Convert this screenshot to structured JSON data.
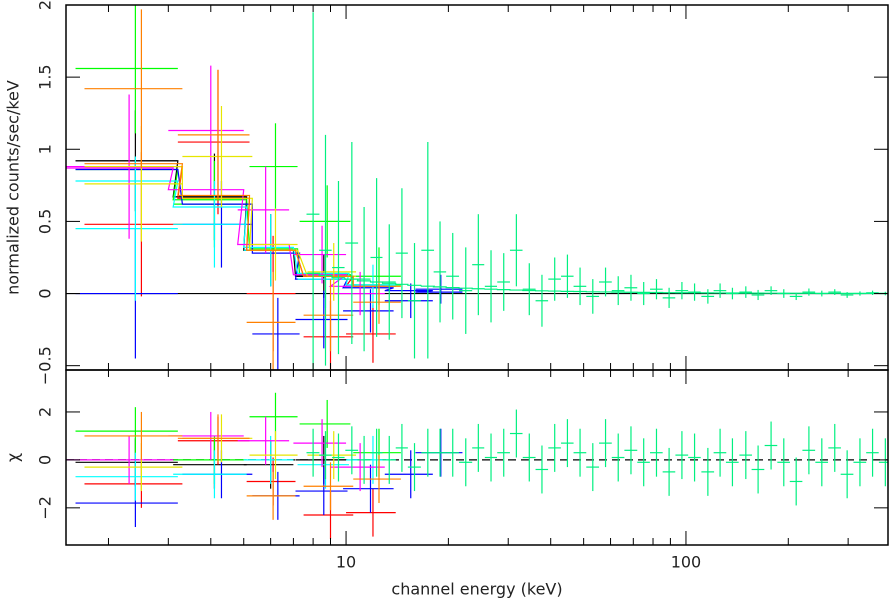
{
  "chart_data": [
    {
      "type": "errorbar",
      "xscale": "log",
      "ylabel": "normalized counts/sec/keV",
      "xlim": [
        1.5,
        393
      ],
      "xticks": [
        10,
        100
      ],
      "x_minor_ticks": [
        2,
        3,
        4,
        5,
        6,
        7,
        8,
        9,
        20,
        30,
        40,
        50,
        60,
        70,
        80,
        90,
        200,
        300
      ],
      "ylim": [
        -0.53,
        2.0
      ],
      "yticks": [
        {
          "value": -0.5,
          "label": "−0.5"
        },
        0,
        0.5,
        1,
        1.5,
        2
      ],
      "reference_line": 0,
      "reference_style": "solid",
      "series": [
        {
          "color": "#000000",
          "x": [
            2.4,
            4.1,
            6.0,
            8.6
          ],
          "x_err": [
            0.8,
            1.0,
            1.0,
            1.5
          ],
          "values": [
            0.92,
            0.67,
            0.3,
            0.12
          ],
          "errors": [
            0.35,
            0.3,
            0.25,
            0.15
          ],
          "model": [
            0.92,
            0.67,
            0.3,
            0.12
          ]
        },
        {
          "color": "#ff0000",
          "x": [
            2.5,
            4.2,
            6.1,
            9.0,
            12.0
          ],
          "x_err": [
            0.8,
            1.0,
            1.0,
            1.5,
            2.0
          ],
          "values": [
            0.48,
            1.05,
            0.0,
            -0.3,
            -0.28
          ],
          "errors": [
            0.5,
            0.5,
            0.4,
            0.25,
            0.2
          ],
          "model": [
            0.88,
            0.66,
            0.3,
            0.12,
            0.05
          ]
        },
        {
          "color": "#00ff00",
          "x": [
            2.4,
            4.1,
            6.2,
            8.8,
            12.5
          ],
          "x_err": [
            0.8,
            1.0,
            1.0,
            1.5,
            2.0
          ],
          "values": [
            1.56,
            0.62,
            0.88,
            0.5,
            0.12
          ],
          "errors": [
            0.45,
            0.3,
            0.3,
            0.25,
            0.2
          ],
          "model": [
            0.86,
            0.65,
            0.31,
            0.13,
            0.06
          ]
        },
        {
          "color": "#0000ff",
          "x": [
            2.4,
            4.3,
            6.3,
            8.6,
            11.8,
            15.5,
            19.0
          ],
          "x_err": [
            0.8,
            1.0,
            1.0,
            1.5,
            2.0,
            2.5,
            3.0
          ],
          "values": [
            0.0,
            0.48,
            -0.28,
            -0.18,
            -0.12,
            -0.05,
            0.03
          ],
          "errors": [
            0.45,
            0.3,
            0.25,
            0.2,
            0.15,
            0.12,
            0.1
          ],
          "model": [
            0.86,
            0.62,
            0.28,
            0.1,
            0.04,
            0.02,
            0.01
          ]
        },
        {
          "color": "#00ffff",
          "x": [
            2.4,
            4.1,
            6.0,
            8.7,
            12.0
          ],
          "x_err": [
            0.8,
            1.0,
            1.0,
            1.5,
            2.0
          ],
          "values": [
            0.45,
            0.48,
            0.3,
            0.1,
            0.05
          ],
          "errors": [
            0.5,
            0.3,
            0.25,
            0.2,
            0.15
          ],
          "model": [
            0.78,
            0.6,
            0.32,
            0.14,
            0.06
          ]
        },
        {
          "color": "#ff00ff",
          "x": [
            2.3,
            4.0,
            5.8,
            8.5,
            11.0
          ],
          "x_err": [
            0.8,
            1.0,
            1.0,
            1.5,
            2.0
          ],
          "values": [
            0.88,
            1.13,
            0.58,
            0.27,
            0.0
          ],
          "errors": [
            0.5,
            0.45,
            0.3,
            0.2,
            0.15
          ],
          "model": [
            0.87,
            0.72,
            0.34,
            0.13,
            0.05
          ]
        },
        {
          "color": "#e6e600",
          "x": [
            2.5,
            4.3,
            6.2,
            9.2
          ],
          "x_err": [
            0.8,
            1.0,
            1.0,
            1.5
          ],
          "values": [
            0.76,
            0.95,
            0.34,
            0.15
          ],
          "errors": [
            0.4,
            0.35,
            0.25,
            0.2
          ],
          "model": [
            0.88,
            0.66,
            0.3,
            0.12
          ]
        },
        {
          "color": "#ff8000",
          "x": [
            2.5,
            4.2,
            6.1,
            9.0,
            12.5
          ],
          "x_err": [
            0.8,
            1.0,
            1.0,
            1.5,
            2.0
          ],
          "values": [
            1.42,
            1.1,
            -0.2,
            -0.15,
            -0.06
          ],
          "errors": [
            0.55,
            0.45,
            0.35,
            0.25,
            0.15
          ],
          "model": [
            0.9,
            0.68,
            0.3,
            0.12,
            0.05
          ]
        },
        {
          "color": "#00f080",
          "x": [
            8.0,
            8.7,
            9.5,
            10.4,
            11.3,
            12.3,
            13.4,
            14.6,
            15.9,
            17.4,
            18.9,
            20.6,
            22.5,
            24.5,
            26.7,
            29.1,
            31.7,
            34.6,
            37.7,
            41.1,
            44.8,
            48.8,
            53.2,
            58.0,
            63.2,
            68.9,
            75.1,
            81.9,
            89.2,
            97.3,
            106,
            116,
            126,
            137,
            150,
            163,
            178,
            194,
            211,
            230,
            251,
            274,
            298,
            325,
            354,
            386
          ],
          "x_err": [
            0.35,
            0.37,
            0.4,
            0.45,
            0.5,
            0.5,
            0.6,
            0.6,
            0.7,
            0.75,
            0.8,
            0.9,
            1,
            1,
            1.1,
            1.25,
            1.35,
            1.5,
            1.6,
            1.75,
            1.9,
            2.1,
            2.3,
            2.5,
            2.7,
            3,
            3.2,
            3.5,
            3.8,
            4.2,
            4.5,
            5,
            5.4,
            5.9,
            6.4,
            7,
            7.6,
            8.3,
            9,
            9.9,
            10.8,
            11.7,
            12.8,
            14,
            15,
            16.5
          ],
          "values": [
            0.55,
            0.3,
            0.18,
            0.35,
            0.1,
            0.25,
            0.08,
            0.28,
            -0.05,
            0.3,
            0.15,
            0.12,
            0.02,
            0.2,
            0.05,
            0.08,
            0.3,
            0.03,
            -0.05,
            0.1,
            0.12,
            0.05,
            -0.02,
            0.08,
            0.02,
            0.04,
            0.0,
            0.03,
            -0.03,
            0.02,
            0.01,
            -0.02,
            0.02,
            0.0,
            0.01,
            -0.01,
            0.02,
            0.0,
            -0.02,
            0.01,
            0.0,
            0.01,
            -0.01,
            0.0,
            0.005,
            0.0
          ],
          "errors": [
            1.4,
            0.8,
            0.6,
            0.7,
            0.5,
            0.55,
            0.4,
            0.45,
            0.4,
            0.75,
            0.35,
            0.3,
            0.3,
            0.35,
            0.25,
            0.2,
            0.25,
            0.18,
            0.18,
            0.15,
            0.15,
            0.13,
            0.12,
            0.1,
            0.1,
            0.09,
            0.08,
            0.07,
            0.07,
            0.06,
            0.06,
            0.05,
            0.05,
            0.04,
            0.04,
            0.035,
            0.03,
            0.03,
            0.025,
            0.025,
            0.02,
            0.02,
            0.02,
            0.015,
            0.015,
            0.012
          ],
          "model": [
            0.14,
            0.125,
            0.11,
            0.1,
            0.088,
            0.08,
            0.071,
            0.064,
            0.057,
            0.051,
            0.046,
            0.041,
            0.037,
            0.033,
            0.03,
            0.027,
            0.024,
            0.021,
            0.019,
            0.017,
            0.015,
            0.014,
            0.012,
            0.011,
            0.01,
            0.009,
            0.008,
            0.007,
            0.006,
            0.0055,
            0.005,
            0.0044,
            0.004,
            0.0035,
            0.003,
            0.0028,
            0.0025,
            0.0022,
            0.002,
            0.0018,
            0.0016,
            0.0014,
            0.0013,
            0.0011,
            0.001,
            0.0009
          ]
        }
      ]
    },
    {
      "type": "errorbar",
      "xscale": "log",
      "ylabel": "χ",
      "xlabel": "channel energy (keV)",
      "xlim": [
        1.5,
        393
      ],
      "xticks": [
        10,
        100
      ],
      "x_minor_ticks": [
        2,
        3,
        4,
        5,
        6,
        7,
        8,
        9,
        20,
        30,
        40,
        50,
        60,
        70,
        80,
        90,
        200,
        300
      ],
      "ylim": [
        -3.55,
        3.75
      ],
      "yticks": [
        {
          "value": -2,
          "label": "−2"
        },
        0,
        2
      ],
      "reference_line": 0,
      "reference_style": "dashed",
      "series": [
        {
          "color": "#000000",
          "x": [
            2.4,
            4.1,
            6.0,
            8.6
          ],
          "x_err": [
            0.8,
            1.0,
            1.0,
            1.5
          ],
          "values": [
            -0.1,
            -0.2,
            -0.2,
            0.0
          ],
          "errors": [
            1,
            1,
            1,
            1
          ]
        },
        {
          "color": "#ff0000",
          "x": [
            2.5,
            4.2,
            6.1,
            9.0,
            12.0
          ],
          "x_err": [
            0.8,
            1.0,
            1.0,
            1.5,
            2.0
          ],
          "values": [
            -1.0,
            0.8,
            -0.9,
            -2.3,
            -2.2
          ],
          "errors": [
            1,
            1,
            1,
            1,
            1
          ]
        },
        {
          "color": "#00ff00",
          "x": [
            2.4,
            4.1,
            6.2,
            8.8,
            12.5
          ],
          "x_err": [
            0.8,
            1.0,
            1.0,
            1.5,
            2.0
          ],
          "values": [
            1.2,
            0.0,
            1.8,
            1.5,
            0.3
          ],
          "errors": [
            1,
            1,
            1,
            1,
            1
          ]
        },
        {
          "color": "#0000ff",
          "x": [
            2.4,
            4.3,
            6.3,
            8.6,
            11.8,
            15.5,
            19.0
          ],
          "x_err": [
            0.8,
            1.0,
            1.0,
            1.5,
            2.0,
            2.5,
            3.0
          ],
          "values": [
            -1.8,
            -0.6,
            -1.5,
            -1.3,
            -1.2,
            -0.6,
            0.3
          ],
          "errors": [
            1,
            1,
            1,
            1,
            1,
            1,
            1
          ]
        },
        {
          "color": "#00ffff",
          "x": [
            2.4,
            4.1,
            6.0,
            8.7,
            12.0
          ],
          "x_err": [
            0.8,
            1.0,
            1.0,
            1.5,
            2.0
          ],
          "values": [
            -0.7,
            -0.6,
            0.0,
            -0.2,
            0.0
          ],
          "errors": [
            1,
            1,
            1,
            1,
            1
          ]
        },
        {
          "color": "#ff00ff",
          "x": [
            2.3,
            4.0,
            5.8,
            8.5,
            11.0
          ],
          "x_err": [
            0.8,
            1.0,
            1.0,
            1.5,
            2.0
          ],
          "values": [
            0.0,
            1.0,
            0.8,
            0.7,
            -0.3
          ],
          "errors": [
            1,
            1,
            1,
            1,
            1
          ]
        },
        {
          "color": "#e6e600",
          "x": [
            2.5,
            4.3,
            6.2,
            9.2
          ],
          "x_err": [
            0.8,
            1.0,
            1.0,
            1.5
          ],
          "values": [
            -0.3,
            0.9,
            0.2,
            0.2
          ],
          "errors": [
            1,
            1,
            1,
            1
          ]
        },
        {
          "color": "#ff8000",
          "x": [
            2.5,
            4.2,
            6.1,
            9.0,
            12.5
          ],
          "x_err": [
            0.8,
            1.0,
            1.0,
            1.5,
            2.0
          ],
          "values": [
            1.0,
            0.9,
            -1.5,
            -1.1,
            -0.8
          ],
          "errors": [
            1,
            1,
            1,
            1,
            1
          ]
        },
        {
          "color": "#00f080",
          "x": [
            8.0,
            8.7,
            9.5,
            10.4,
            11.3,
            12.3,
            13.4,
            14.6,
            15.9,
            17.4,
            18.9,
            20.6,
            22.5,
            24.5,
            26.7,
            29.1,
            31.7,
            34.6,
            37.7,
            41.1,
            44.8,
            48.8,
            53.2,
            58.0,
            63.2,
            68.9,
            75.1,
            81.9,
            89.2,
            97.3,
            106,
            116,
            126,
            137,
            150,
            163,
            178,
            194,
            211,
            230,
            251,
            274,
            298,
            325,
            354,
            386
          ],
          "x_err": [
            0.35,
            0.37,
            0.4,
            0.45,
            0.5,
            0.5,
            0.6,
            0.6,
            0.7,
            0.75,
            0.8,
            0.9,
            1,
            1,
            1.1,
            1.25,
            1.35,
            1.5,
            1.6,
            1.75,
            1.9,
            2.1,
            2.3,
            2.5,
            2.7,
            3,
            3.2,
            3.5,
            3.8,
            4.2,
            4.5,
            5,
            5.4,
            5.9,
            6.4,
            7,
            7.6,
            8.3,
            9,
            9.9,
            10.8,
            11.7,
            12.8,
            14,
            15,
            16.5
          ],
          "values": [
            0.3,
            0.2,
            0.1,
            0.4,
            0.0,
            0.3,
            0.0,
            0.5,
            -0.3,
            0.3,
            0.3,
            0.3,
            -0.1,
            0.5,
            0.1,
            0.3,
            1.1,
            0.1,
            -0.4,
            0.5,
            0.7,
            0.3,
            -0.3,
            0.7,
            0.1,
            0.4,
            -0.1,
            0.3,
            -0.5,
            0.2,
            0.1,
            -0.5,
            0.3,
            -0.1,
            0.2,
            -0.4,
            0.6,
            -0.1,
            -0.9,
            0.4,
            -0.1,
            0.5,
            -0.6,
            -0.1,
            0.3,
            -0.1
          ],
          "errors": [
            1,
            1,
            1,
            1,
            1,
            1,
            1,
            1,
            1,
            1,
            1,
            1,
            1,
            1,
            1,
            1,
            1,
            1,
            1,
            1,
            1,
            1,
            1,
            1,
            1,
            1,
            1,
            1,
            1,
            1,
            1,
            1,
            1,
            1,
            1,
            1,
            1,
            1,
            1,
            1,
            1,
            1,
            1,
            1,
            1,
            1
          ]
        }
      ]
    }
  ]
}
